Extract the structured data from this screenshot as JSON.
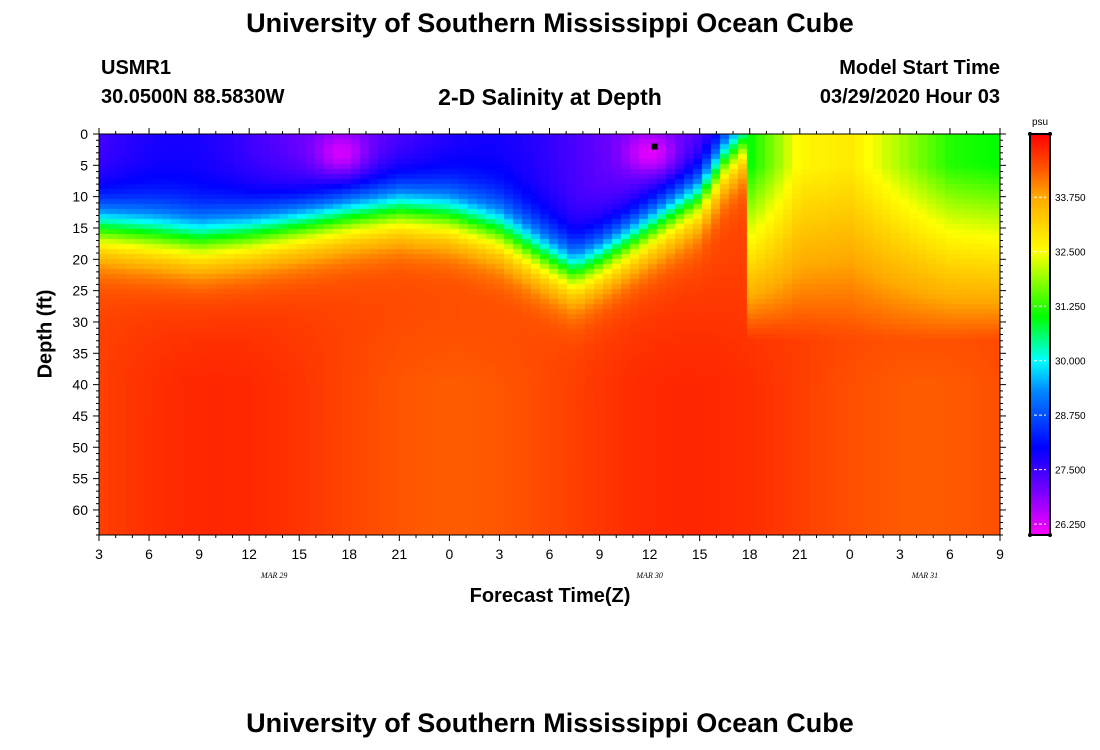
{
  "header": {
    "title": "University of Southern Mississippi Ocean Cube",
    "station": "USMR1",
    "coords": "30.0500N 88.5830W",
    "subtitle": "2-D Salinity at Depth",
    "start_label": "Model Start Time",
    "start_value": "03/29/2020 Hour 03"
  },
  "footer": {
    "title": "University of Southern Mississippi Ocean Cube"
  },
  "chart_data": {
    "type": "heatmap",
    "title": "2-D Salinity at Depth",
    "xlabel": "Forecast Time(Z)",
    "ylabel": "Depth (ft)",
    "x_range_hours": [
      0,
      54
    ],
    "y_range_ft": [
      0,
      64
    ],
    "x_ticks": [
      "3",
      "6",
      "9",
      "12",
      "15",
      "18",
      "21",
      "0",
      "3",
      "6",
      "9",
      "12",
      "15",
      "18",
      "21",
      "0",
      "3",
      "6",
      "9"
    ],
    "y_ticks": [
      0,
      5,
      10,
      15,
      20,
      25,
      30,
      35,
      40,
      45,
      50,
      55,
      60
    ],
    "date_labels": [
      {
        "text": "MAR 29",
        "hour": 10.5
      },
      {
        "text": "MAR 30",
        "hour": 33
      },
      {
        "text": "MAR 31",
        "hour": 49.5
      }
    ],
    "colorbar": {
      "unit": "psu",
      "min": 26.0,
      "max": 35.2,
      "ticks": [
        "26.250",
        "27.500",
        "28.750",
        "30.000",
        "31.250",
        "32.500",
        "33.750"
      ],
      "tick_values": [
        26.25,
        27.5,
        28.75,
        30.0,
        31.25,
        32.5,
        33.75
      ],
      "stops": [
        {
          "value": 26.0,
          "color": "#ff00ff"
        },
        {
          "value": 27.0,
          "color": "#7700ff"
        },
        {
          "value": 28.0,
          "color": "#0000ff"
        },
        {
          "value": 29.3,
          "color": "#0088ff"
        },
        {
          "value": 30.0,
          "color": "#00ffff"
        },
        {
          "value": 31.0,
          "color": "#00ff00"
        },
        {
          "value": 32.5,
          "color": "#ffff00"
        },
        {
          "value": 33.75,
          "color": "#ffaa00"
        },
        {
          "value": 34.4,
          "color": "#ff5500"
        },
        {
          "value": 35.2,
          "color": "#ff0000"
        }
      ]
    },
    "halocline_depth_ft": [
      {
        "hour": 0,
        "depth": 15
      },
      {
        "hour": 3,
        "depth": 16
      },
      {
        "hour": 6,
        "depth": 17
      },
      {
        "hour": 9,
        "depth": 16
      },
      {
        "hour": 12,
        "depth": 14.5
      },
      {
        "hour": 15,
        "depth": 13
      },
      {
        "hour": 18,
        "depth": 12
      },
      {
        "hour": 21,
        "depth": 13
      },
      {
        "hour": 24,
        "depth": 15.5
      },
      {
        "hour": 27,
        "depth": 20
      },
      {
        "hour": 28.5,
        "depth": 22
      },
      {
        "hour": 30,
        "depth": 20
      },
      {
        "hour": 33,
        "depth": 15
      },
      {
        "hour": 36,
        "depth": 10
      },
      {
        "hour": 37.5,
        "depth": 4
      },
      {
        "hour": 39,
        "depth": 0
      }
    ],
    "surface_values_psu": [
      {
        "hour": 39,
        "value": 31.0
      },
      {
        "hour": 42,
        "value": 32.6
      },
      {
        "hour": 45,
        "value": 32.8
      },
      {
        "hour": 48,
        "value": 32.0
      },
      {
        "hour": 51,
        "value": 31.2
      },
      {
        "hour": 54,
        "value": 31.0
      }
    ],
    "deep_value_psu": 34.6,
    "fresh_pockets": [
      {
        "hour": 14.5,
        "depth": 3,
        "value": 26.3
      },
      {
        "hour": 33,
        "depth": 3,
        "value": 26.2
      }
    ],
    "marker": {
      "hour": 33.3,
      "depth": 2
    }
  }
}
